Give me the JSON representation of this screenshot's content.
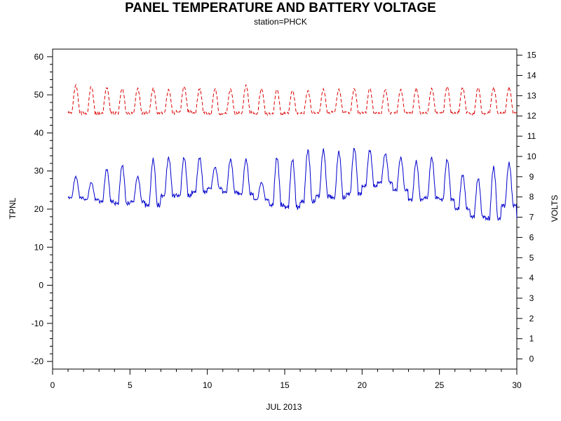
{
  "chart_data": {
    "type": "line",
    "title": "PANEL TEMPERATURE AND BATTERY VOLTAGE",
    "subtitle": "station=PHCK",
    "xlabel": "JUL 2013",
    "ylabel_left": "TPNL",
    "ylabel_right": "VOLTS",
    "xlim": [
      0,
      30
    ],
    "ylim_left": [
      -22,
      62
    ],
    "ylim_right": [
      -0.5,
      15.3
    ],
    "x_ticks": [
      0,
      5,
      10,
      15,
      20,
      25,
      30
    ],
    "y_left_ticks": [
      -20,
      -10,
      0,
      10,
      20,
      30,
      40,
      50,
      60
    ],
    "y_right_ticks": [
      0,
      1,
      2,
      3,
      4,
      5,
      6,
      7,
      8,
      9,
      10,
      11,
      12,
      13,
      14,
      15
    ],
    "grid": false,
    "series": [
      {
        "axis": "left",
        "color": "#0000cc",
        "style": "solid",
        "daily_min": [
          23.0,
          22.5,
          22.0,
          21.5,
          22.0,
          21.0,
          23.5,
          23.5,
          24.5,
          25.5,
          24.5,
          24.0,
          22.5,
          21.0,
          20.5,
          22.0,
          23.5,
          23.0,
          24.0,
          26.0,
          27.0,
          25.0,
          22.5,
          23.0,
          22.5,
          20.0,
          18.0,
          17.5,
          21.0,
          17.5
        ],
        "daily_max": [
          28.5,
          27.0,
          30.5,
          31.5,
          28.5,
          33.0,
          33.5,
          33.5,
          33.5,
          31.0,
          33.0,
          33.0,
          27.0,
          33.5,
          33.0,
          35.5,
          35.5,
          35.0,
          36.0,
          35.5,
          34.5,
          33.5,
          32.5,
          33.5,
          33.0,
          29.0,
          28.0,
          31.0,
          32.0,
          31.0
        ]
      },
      {
        "axis": "right",
        "color": "#dd0000",
        "style": "dashed",
        "daily_min": [
          12.15,
          12.1,
          12.15,
          12.15,
          12.15,
          12.15,
          12.15,
          12.2,
          12.15,
          12.1,
          12.15,
          12.15,
          12.1,
          12.1,
          12.15,
          12.15,
          12.15,
          12.2,
          12.15,
          12.15,
          12.15,
          12.15,
          12.15,
          12.15,
          12.15,
          12.15,
          12.1,
          12.15,
          12.15,
          12.15
        ],
        "daily_max": [
          13.5,
          13.45,
          13.4,
          13.35,
          13.35,
          13.35,
          13.3,
          13.45,
          13.35,
          13.35,
          13.3,
          13.5,
          13.35,
          13.3,
          13.25,
          13.25,
          13.3,
          13.3,
          13.35,
          13.35,
          13.3,
          13.3,
          13.35,
          13.35,
          13.45,
          13.4,
          13.4,
          13.4,
          13.4,
          13.4
        ]
      }
    ]
  }
}
